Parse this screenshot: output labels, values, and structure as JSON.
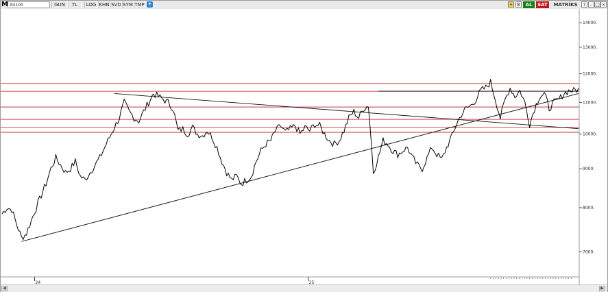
{
  "toolbar": {
    "logo": "M",
    "symbol": "XU100",
    "buttons": [
      "GUN",
      "TL",
      "LOG",
      "KHN",
      "SVD",
      "SYM",
      "TMP"
    ],
    "buy_label": "AL",
    "sell_label": "SAT",
    "brand": "MATRİKS",
    "colors": {
      "buy": "#188018",
      "sell": "#c01818",
      "accent": "#2f84d8"
    },
    "icons": [
      "settings-icon",
      "twitter-icon",
      "lock-icon",
      "info-icon",
      "minimize-icon",
      "maximize-icon",
      "close-icon"
    ]
  },
  "chart_data": {
    "type": "line",
    "title": "XU100",
    "y_scale": "log",
    "ylim": [
      6500,
      14600
    ],
    "y_ticks": [
      {
        "value": 7000,
        "label": "7000."
      },
      {
        "value": 8000,
        "label": "8000."
      },
      {
        "value": 9000,
        "label": "9000."
      },
      {
        "value": 10000,
        "label": "10000."
      },
      {
        "value": 11000,
        "label": "11000."
      },
      {
        "value": 12000,
        "label": "12000."
      },
      {
        "value": 13000,
        "label": "13000."
      },
      {
        "value": 14000,
        "label": "14000."
      }
    ],
    "x_ticks": [
      {
        "index": 20,
        "label": "24"
      },
      {
        "index": 188,
        "label": "25"
      }
    ],
    "grid": false,
    "legend": "none",
    "n_points": 355,
    "series": [
      {
        "values": [
          7850,
          8000,
          7950,
          7600,
          7300,
          7400,
          7700,
          8000,
          8300,
          8600,
          9000,
          9300,
          9100,
          8900,
          9000,
          9200,
          8800,
          8700,
          8900,
          9100,
          9300,
          9600,
          9900,
          10200,
          10500,
          11000,
          10700,
          10500,
          10400,
          10700,
          11000,
          11300,
          11200,
          11100,
          11000,
          10800,
          10100,
          10150,
          10000,
          10200,
          10000,
          9950,
          10100,
          9900,
          9600,
          9200,
          8900,
          8700,
          8800,
          8600,
          8700,
          8800,
          9200,
          9500,
          9700,
          9800,
          10100,
          10250,
          10050,
          10150,
          10250,
          10000,
          10200,
          10100,
          10300,
          10250,
          10000,
          9800,
          9700,
          9800,
          10100,
          10500,
          10700,
          10500,
          10800,
          10900,
          8900,
          9300,
          9800,
          9700,
          9500,
          9400,
          9500,
          9600,
          9300,
          9100,
          9000,
          9300,
          9600,
          9400,
          9250,
          9600,
          9900,
          10300,
          10600,
          10800,
          10900,
          11100,
          11400,
          11500,
          11700,
          11100,
          10500,
          11100,
          11500,
          11200,
          11400,
          11000,
          10300,
          10800,
          11200,
          11300,
          10800,
          11000,
          11100,
          11300,
          11400,
          11400,
          11450
        ],
        "x_step": 3
      }
    ],
    "horizontal_levels": [
      {
        "value": 11650,
        "color": "#d44a4a"
      },
      {
        "value": 11380,
        "color": "#d44a4a"
      },
      {
        "value": 10850,
        "color": "#c83030"
      },
      {
        "value": 10450,
        "color": "#d44a4a"
      },
      {
        "value": 10200,
        "color": "#d44a4a"
      },
      {
        "value": 10050,
        "color": "#c83030"
      }
    ],
    "trendlines": [
      {
        "from_index": 12,
        "from_value": 7220,
        "to_index": 354,
        "to_value": 11300
      },
      {
        "from_index": 69,
        "from_value": 11300,
        "to_index": 354,
        "to_value": 10160
      },
      {
        "from_index": 231,
        "from_value": 11380,
        "to_index": 354,
        "to_value": 11380
      }
    ],
    "line_color": "#000000"
  }
}
